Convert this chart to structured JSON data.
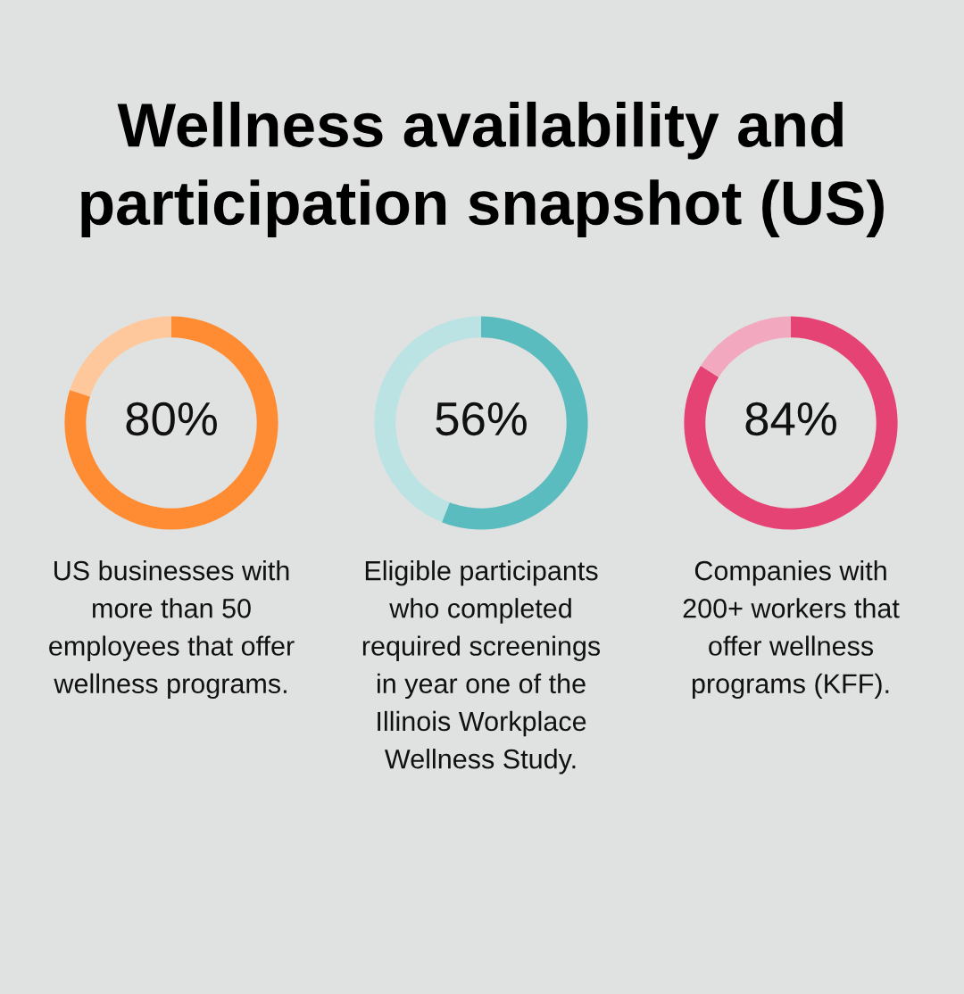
{
  "chart_data": [
    {
      "type": "donut",
      "title": "Wellness availability and participation snapshot (US)",
      "categories": [
        null,
        null
      ],
      "values": [
        80,
        20
      ],
      "colors": [
        "#ff8c33",
        "#ffc89c"
      ],
      "value_labels": [
        "80%",
        null
      ],
      "annotations": [
        "US businesses with\nmore than 50\nemployees that offer\nwellness programs."
      ]
    },
    {
      "type": "donut",
      "categories": [
        null,
        null
      ],
      "values": [
        56,
        44
      ],
      "colors": [
        "#5bbcbf",
        "#bbe3e4"
      ],
      "value_labels": [
        "56%",
        null
      ],
      "annotations": [
        "Eligible participants\nwho completed\nrequired screenings\nin year one of the\nIllinois Workplace\nWellness Study."
      ]
    },
    {
      "type": "donut",
      "categories": [
        null,
        null
      ],
      "values": [
        84,
        16
      ],
      "colors": [
        "#e44374",
        "#f2a9c0"
      ],
      "value_labels": [
        "84%",
        null
      ],
      "annotations": [
        "Companies with\n200+ workers that\noffer wellness\nprograms (KFF)."
      ]
    }
  ]
}
